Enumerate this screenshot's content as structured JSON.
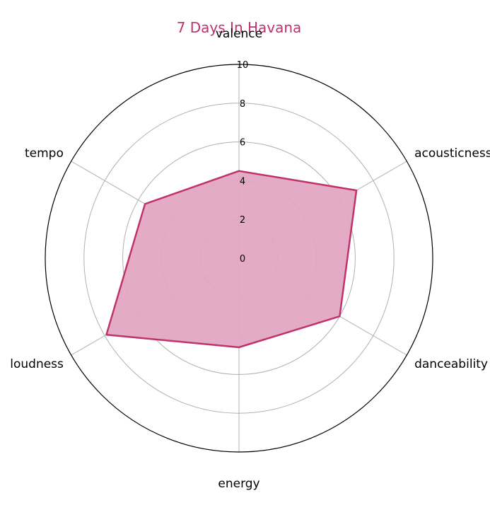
{
  "chart_data": {
    "type": "radar",
    "title": "7 Days In Havana",
    "axes": [
      "valence",
      "acousticness",
      "danceability",
      "energy",
      "loudness",
      "tempo"
    ],
    "series": [
      {
        "values": [
          4.5,
          7.0,
          6.0,
          4.6,
          7.9,
          5.6
        ]
      }
    ],
    "rlim": [
      0,
      10
    ],
    "r_ticks": [
      "0",
      "2",
      "4",
      "6",
      "8",
      "10"
    ],
    "grid": true,
    "colors": {
      "title": "#c0326b",
      "line": "#c0326b",
      "fill": "#e1a7c2",
      "grid": "#b0b0b0",
      "outer": "#000000"
    }
  }
}
